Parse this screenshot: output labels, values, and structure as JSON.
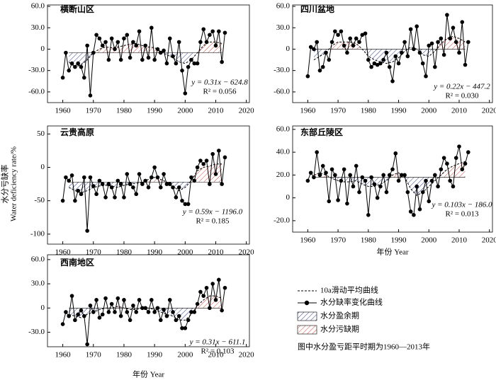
{
  "y_label_zh": "水分亏缺率",
  "y_label_en": "Water deficiency rate/%",
  "legend": {
    "items": [
      "10a滑动平均曲线",
      "水分缺率变化曲线",
      "水分盈余期",
      "水分污缺期"
    ],
    "note": "图中水分盈亏距平时期为1960—2013年"
  },
  "chart_data": [
    {
      "type": "line",
      "title": "横断山区",
      "x": [
        1960,
        1961,
        1962,
        1963,
        1964,
        1965,
        1966,
        1967,
        1968,
        1969,
        1970,
        1971,
        1972,
        1973,
        1974,
        1975,
        1976,
        1977,
        1978,
        1979,
        1980,
        1981,
        1982,
        1983,
        1984,
        1985,
        1986,
        1987,
        1988,
        1989,
        1990,
        1991,
        1992,
        1993,
        1994,
        1995,
        1996,
        1997,
        1998,
        1999,
        2000,
        2001,
        2002,
        2003,
        2004,
        2005,
        2006,
        2007,
        2008,
        2009,
        2010,
        2011,
        2012,
        2013
      ],
      "values": [
        -40,
        -5,
        -30,
        -20,
        -25,
        -20,
        -25,
        -40,
        5,
        -65,
        -5,
        20,
        15,
        5,
        10,
        -15,
        15,
        0,
        10,
        -15,
        15,
        20,
        -12,
        10,
        5,
        25,
        -15,
        5,
        -12,
        30,
        -15,
        0,
        -5,
        -2,
        -20,
        15,
        -10,
        -20,
        10,
        -30,
        -62,
        -25,
        -15,
        -20,
        -20,
        10,
        28,
        10,
        20,
        25,
        5,
        25,
        -18,
        23
      ],
      "moving_average": {
        "x": [
          1962,
          1964,
          1966,
          1968,
          1970,
          1972,
          1974,
          1976,
          1978,
          1980,
          1982,
          1984,
          1986,
          1988,
          1990,
          1992,
          1994,
          1996,
          1998,
          2000,
          2002,
          2004,
          2006,
          2008,
          2010,
          2012
        ],
        "values": [
          -18,
          -25,
          -22,
          -15,
          -5,
          0,
          3,
          2,
          3,
          5,
          7,
          8,
          5,
          3,
          2,
          -3,
          -8,
          -12,
          -18,
          -20,
          -15,
          -5,
          5,
          10,
          10,
          8
        ]
      },
      "reference": -5,
      "equation": "y = 0.31x − 624.8",
      "r2": "R² = 0.056",
      "xlim": [
        1955,
        2021
      ],
      "xticks": [
        1960,
        1970,
        1980,
        1990,
        2000,
        2010,
        2020
      ],
      "ylim": [
        -75,
        62
      ],
      "yticks": [
        {
          "value": 60,
          "label": "60.0"
        },
        {
          "value": 30,
          "label": "30.0"
        },
        0,
        {
          "value": -30,
          "label": "-30.0"
        },
        {
          "value": -60,
          "label": "-60.0"
        }
      ]
    },
    {
      "type": "line",
      "title": "四川盆地",
      "x": [
        1960,
        1961,
        1962,
        1963,
        1964,
        1965,
        1966,
        1967,
        1968,
        1969,
        1970,
        1971,
        1972,
        1973,
        1974,
        1975,
        1976,
        1977,
        1978,
        1979,
        1980,
        1981,
        1982,
        1983,
        1984,
        1985,
        1986,
        1987,
        1988,
        1989,
        1990,
        1991,
        1992,
        1993,
        1994,
        1995,
        1996,
        1997,
        1998,
        1999,
        2000,
        2001,
        2002,
        2003,
        2004,
        2005,
        2006,
        2007,
        2008,
        2009,
        2010,
        2011,
        2012,
        2013
      ],
      "values": [
        -38,
        3,
        0,
        10,
        -30,
        -25,
        -5,
        -15,
        10,
        25,
        20,
        25,
        5,
        -5,
        15,
        5,
        15,
        10,
        20,
        22,
        -15,
        -25,
        -20,
        -22,
        -20,
        -15,
        -5,
        -25,
        -45,
        -10,
        -20,
        -5,
        10,
        -10,
        28,
        0,
        32,
        -5,
        -20,
        -38,
        5,
        8,
        -25,
        10,
        15,
        -8,
        48,
        15,
        30,
        10,
        -5,
        38,
        -22,
        10
      ],
      "moving_average": {
        "x": [
          1962,
          1964,
          1966,
          1968,
          1970,
          1972,
          1974,
          1976,
          1978,
          1980,
          1982,
          1984,
          1986,
          1988,
          1990,
          1992,
          1994,
          1996,
          1998,
          2000,
          2002,
          2004,
          2006,
          2008,
          2010,
          2012
        ],
        "values": [
          -15,
          -10,
          -5,
          5,
          10,
          10,
          10,
          8,
          0,
          -10,
          -15,
          -18,
          -20,
          -18,
          -12,
          -3,
          3,
          0,
          -8,
          -10,
          -3,
          8,
          15,
          18,
          15,
          10
        ]
      },
      "reference": 0,
      "equation": "y = 0.22x − 447.2",
      "r2": "R² = 0.030",
      "xlim": [
        1955,
        2021
      ],
      "xticks": [
        1960,
        1970,
        1980,
        1990,
        2000,
        2010,
        2020
      ],
      "ylim": [
        -75,
        62
      ],
      "yticks": [
        {
          "value": 60,
          "label": "60.0"
        },
        {
          "value": 30,
          "label": "30.0"
        },
        0,
        {
          "value": -30,
          "label": "-30.0"
        },
        {
          "value": -60,
          "label": "-60.0"
        }
      ]
    },
    {
      "type": "line",
      "title": "云贵高原",
      "x": [
        1960,
        1961,
        1962,
        1963,
        1964,
        1965,
        1966,
        1967,
        1968,
        1969,
        1970,
        1971,
        1972,
        1973,
        1974,
        1975,
        1976,
        1977,
        1978,
        1979,
        1980,
        1981,
        1982,
        1983,
        1984,
        1985,
        1986,
        1987,
        1988,
        1989,
        1990,
        1991,
        1992,
        1993,
        1994,
        1995,
        1996,
        1997,
        1998,
        1999,
        2000,
        2001,
        2002,
        2003,
        2004,
        2005,
        2006,
        2007,
        2008,
        2009,
        2010,
        2011,
        2012,
        2013
      ],
      "values": [
        -50,
        -15,
        -20,
        -12,
        -50,
        -35,
        -40,
        -15,
        -95,
        -15,
        -28,
        -40,
        -20,
        -25,
        -45,
        -25,
        -30,
        -45,
        -20,
        -25,
        -45,
        -10,
        -25,
        -30,
        -40,
        -10,
        -25,
        -20,
        -30,
        -15,
        0,
        -15,
        -30,
        -10,
        -25,
        -25,
        -30,
        -45,
        -30,
        -50,
        -55,
        -55,
        -15,
        -20,
        0,
        10,
        5,
        10,
        -25,
        20,
        -10,
        25,
        -25,
        15
      ],
      "moving_average": {
        "x": [
          1962,
          1964,
          1966,
          1968,
          1970,
          1972,
          1974,
          1976,
          1978,
          1980,
          1982,
          1984,
          1986,
          1988,
          1990,
          1992,
          1994,
          1996,
          1998,
          2000,
          2002,
          2004,
          2006,
          2008,
          2010,
          2012
        ],
        "values": [
          -30,
          -35,
          -38,
          -35,
          -30,
          -28,
          -27,
          -28,
          -30,
          -27,
          -25,
          -24,
          -22,
          -18,
          -15,
          -18,
          -22,
          -28,
          -35,
          -30,
          -20,
          -5,
          0,
          2,
          5,
          5
        ]
      },
      "reference": -22,
      "equation": "y = 0.59x − 1196.0",
      "r2": "R² = 0.185",
      "xlim": [
        1955,
        2021
      ],
      "xticks": [
        1960,
        1970,
        1980,
        1990,
        2000,
        2010,
        2020
      ],
      "ylim": [
        -115,
        62
      ],
      "yticks": [
        50,
        0,
        -50,
        -100
      ]
    },
    {
      "type": "line",
      "title": "东部丘陵区",
      "x": [
        1960,
        1961,
        1962,
        1963,
        1964,
        1965,
        1966,
        1967,
        1968,
        1969,
        1970,
        1971,
        1972,
        1973,
        1974,
        1975,
        1976,
        1977,
        1978,
        1979,
        1980,
        1981,
        1982,
        1983,
        1984,
        1985,
        1986,
        1987,
        1988,
        1989,
        1990,
        1991,
        1992,
        1993,
        1994,
        1995,
        1996,
        1997,
        1998,
        1999,
        2000,
        2001,
        2002,
        2003,
        2004,
        2005,
        2006,
        2007,
        2008,
        2009,
        2010,
        2011,
        2012,
        2013
      ],
      "values": [
        15,
        22,
        18,
        40,
        20,
        28,
        22,
        -3,
        25,
        20,
        -2,
        15,
        25,
        -5,
        20,
        10,
        28,
        5,
        18,
        15,
        -15,
        18,
        12,
        0,
        10,
        20,
        5,
        20,
        25,
        39,
        15,
        20,
        20,
        5,
        -12,
        -15,
        10,
        -10,
        5,
        15,
        -3,
        15,
        20,
        10,
        25,
        35,
        30,
        15,
        10,
        35,
        45,
        25,
        30,
        40
      ],
      "moving_average": {
        "x": [
          1962,
          1964,
          1966,
          1968,
          1970,
          1972,
          1974,
          1976,
          1978,
          1980,
          1982,
          1984,
          1986,
          1988,
          1990,
          1992,
          1994,
          1996,
          1998,
          2000,
          2002,
          2004,
          2006,
          2008,
          2010,
          2012
        ],
        "values": [
          20,
          22,
          20,
          17,
          15,
          14,
          14,
          15,
          12,
          10,
          10,
          12,
          15,
          20,
          22,
          18,
          8,
          2,
          5,
          10,
          15,
          20,
          25,
          28,
          30,
          32
        ]
      },
      "reference": 18,
      "equation": "y = 0.103x − 186.0",
      "r2": "R² = 0.013",
      "xlabel": "年份 Year",
      "xlim": [
        1955,
        2021
      ],
      "xticks": [
        1960,
        1970,
        1980,
        1990,
        2000,
        2010,
        2020
      ],
      "ylim": [
        -30,
        63
      ],
      "yticks": [
        {
          "value": 60,
          "label": "60.0"
        },
        {
          "value": 40,
          "label": "40.0"
        },
        {
          "value": 20,
          "label": "20.0"
        },
        0,
        {
          "value": -20,
          "label": "-20.0"
        }
      ]
    },
    {
      "type": "line",
      "title": "西南地区",
      "x": [
        1960,
        1961,
        1962,
        1963,
        1964,
        1965,
        1966,
        1967,
        1968,
        1969,
        1970,
        1971,
        1972,
        1973,
        1974,
        1975,
        1976,
        1977,
        1978,
        1979,
        1980,
        1981,
        1982,
        1983,
        1984,
        1985,
        1986,
        1987,
        1988,
        1989,
        1990,
        1991,
        1992,
        1993,
        1994,
        1995,
        1996,
        1997,
        1998,
        1999,
        2000,
        2001,
        2002,
        2003,
        2004,
        2005,
        2006,
        2007,
        2008,
        2009,
        2010,
        2011,
        2012,
        2013
      ],
      "values": [
        -20,
        -5,
        -10,
        15,
        -15,
        -8,
        -3,
        -10,
        -45,
        3,
        -5,
        10,
        -12,
        -8,
        12,
        -5,
        5,
        -5,
        12,
        -10,
        10,
        -5,
        -15,
        3,
        -5,
        10,
        0,
        0,
        -5,
        10,
        -5,
        0,
        -15,
        -2,
        -10,
        10,
        -5,
        -15,
        -10,
        -25,
        -25,
        -15,
        -5,
        -5,
        5,
        20,
        15,
        25,
        0,
        30,
        10,
        35,
        -3,
        25
      ],
      "moving_average": {
        "x": [
          1962,
          1964,
          1966,
          1968,
          1970,
          1972,
          1974,
          1976,
          1978,
          1980,
          1982,
          1984,
          1986,
          1988,
          1990,
          1992,
          1994,
          1996,
          1998,
          2000,
          2002,
          2004,
          2006,
          2008,
          2010,
          2012
        ],
        "values": [
          -8,
          -10,
          -12,
          -8,
          -5,
          -2,
          0,
          0,
          2,
          0,
          -2,
          -2,
          0,
          0,
          -2,
          -5,
          -8,
          -10,
          -15,
          -15,
          -8,
          3,
          10,
          15,
          15,
          12
        ]
      },
      "reference": 0,
      "equation": "y = 0.31x − 611.1",
      "r2": "R² = 0.103",
      "xlabel": "年份 Year",
      "xlim": [
        1955,
        2021
      ],
      "xticks": [
        1960,
        1970,
        1980,
        1990,
        2000,
        2010,
        2020
      ],
      "ylim": [
        -48,
        66
      ],
      "yticks": [
        {
          "value": 60,
          "label": "60.0"
        },
        {
          "value": 30,
          "label": "30.0"
        },
        0,
        {
          "value": -30,
          "label": "-30.0"
        }
      ]
    }
  ]
}
